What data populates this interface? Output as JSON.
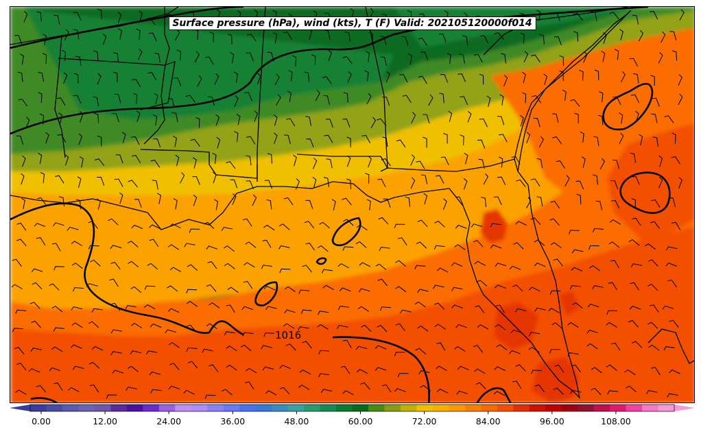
{
  "title": "Surface pressure (hPa), wind (kts), T (F) Valid: 202105120000f014",
  "contour_label": "1016",
  "colorbar": {
    "tick_labels": [
      "0.00",
      "12.00",
      "24.00",
      "36.00",
      "48.00",
      "60.00",
      "72.00",
      "84.00",
      "96.00",
      "108.00"
    ],
    "colors": [
      "#3b3b9a",
      "#4b4ba6",
      "#5a5aae",
      "#6a62b2",
      "#6f55a8",
      "#5a2a9a",
      "#4a10a0",
      "#6a2ad0",
      "#9a60e0",
      "#c090f0",
      "#b08cf4",
      "#8a80f8",
      "#6a78f8",
      "#4a70f0",
      "#3a78d8",
      "#3a8cc0",
      "#3aa0a0",
      "#2a9a70",
      "#1a8a50",
      "#0a7a30",
      "#0a6a1a",
      "#4a8a10",
      "#8a9a10",
      "#c0b000",
      "#f0c000",
      "#f8b000",
      "#f89a00",
      "#f88000",
      "#f86a00",
      "#f05000",
      "#e03000",
      "#d01000",
      "#c00000",
      "#a00010",
      "#901030",
      "#c01050",
      "#e01870",
      "#f040a0",
      "#f878c8",
      "#f898d8"
    ]
  },
  "map": {
    "fill_bands": [
      "#0b6b22",
      "#168035",
      "#3f8a25",
      "#93a213",
      "#f0c000",
      "#fca200",
      "#fb6d00",
      "#f34f00",
      "#e53600"
    ],
    "boundary_color": "#000000",
    "isobar_color": "#000000"
  }
}
